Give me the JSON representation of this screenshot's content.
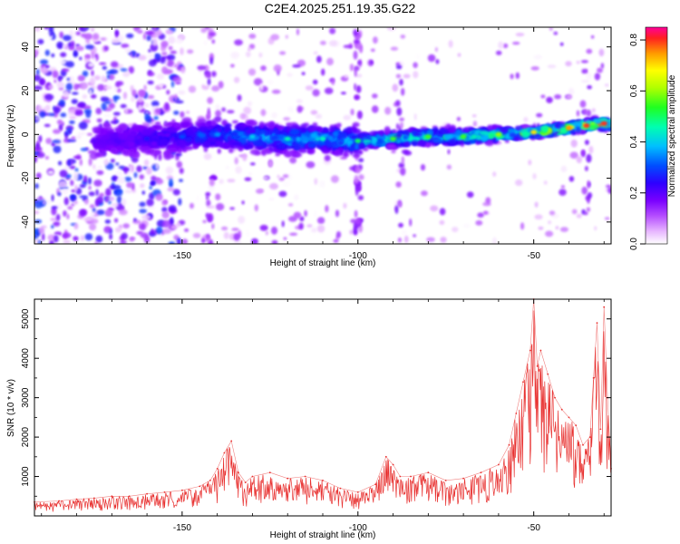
{
  "title": "C2E4.2025.251.19.35.G22",
  "colors": {
    "snr_line": "#e8302f",
    "axis": "#000000",
    "background": "#ffffff"
  },
  "chart_data": [
    {
      "type": "heatmap",
      "name": "spectrogram",
      "xlabel": "Height of straight line (km)",
      "ylabel": "Frequency (Hz)",
      "xlim": [
        -192,
        -28
      ],
      "ylim": [
        -50,
        49
      ],
      "x_ticks": [
        "-150",
        "-100",
        "-50"
      ],
      "x_tick_values": [
        -150,
        -100,
        -50
      ],
      "y_ticks": [
        "40",
        "20",
        "0",
        "-20",
        "-40"
      ],
      "y_tick_values": [
        40,
        20,
        0,
        -20,
        -40
      ],
      "colorbar": {
        "label": "Normalized spectral amplitude",
        "range": [
          0,
          0.85
        ],
        "ticks": [
          "0.0",
          "0.2",
          "0.4",
          "0.6",
          "0.8"
        ],
        "tick_values": [
          0.0,
          0.2,
          0.4,
          0.6,
          0.8
        ]
      },
      "description_points": {
        "ridge_height_km": [
          -175,
          -160,
          -150,
          -140,
          -130,
          -120,
          -110,
          -100,
          -90,
          -80,
          -70,
          -60,
          -50,
          -40,
          -35,
          -30
        ],
        "ridge_frequency_hz": [
          -3,
          -2,
          -1,
          0,
          -1,
          -2,
          -2,
          -3,
          -2,
          -1,
          -1,
          0,
          1,
          3,
          4,
          5
        ],
        "ridge_peak_amplitude": [
          0.2,
          0.25,
          0.3,
          0.35,
          0.4,
          0.45,
          0.45,
          0.5,
          0.55,
          0.55,
          0.55,
          0.6,
          0.7,
          0.75,
          0.8,
          0.8
        ]
      }
    },
    {
      "type": "line",
      "name": "snr",
      "xlabel": "Height of straight line (km)",
      "ylabel": "SNR (10 * v/v)",
      "xlim": [
        -192,
        -28
      ],
      "ylim": [
        0,
        5500
      ],
      "x_ticks": [
        "-150",
        "-100",
        "-50"
      ],
      "x_tick_values": [
        -150,
        -100,
        -50
      ],
      "y_ticks": [
        "1000",
        "2000",
        "3000",
        "4000",
        "5000"
      ],
      "y_tick_values": [
        1000,
        2000,
        3000,
        4000,
        5000
      ],
      "series": [
        {
          "name": "SNR",
          "x": [
            -192,
            -185,
            -180,
            -175,
            -170,
            -165,
            -160,
            -155,
            -150,
            -145,
            -142,
            -140,
            -138,
            -136,
            -134,
            -132,
            -130,
            -125,
            -120,
            -115,
            -110,
            -105,
            -100,
            -95,
            -92,
            -90,
            -88,
            -85,
            -80,
            -75,
            -70,
            -65,
            -60,
            -57,
            -55,
            -53,
            -51,
            -50,
            -49,
            -48,
            -46,
            -44,
            -42,
            -40,
            -38,
            -36,
            -34,
            -33,
            -32,
            -31,
            -30,
            -29,
            -28
          ],
          "values": [
            350,
            380,
            420,
            450,
            500,
            500,
            560,
            600,
            650,
            750,
            900,
            1200,
            1600,
            1900,
            1100,
            850,
            1000,
            1100,
            950,
            1000,
            900,
            700,
            600,
            800,
            1500,
            1300,
            1000,
            1000,
            1100,
            900,
            950,
            1100,
            1300,
            1800,
            2600,
            3400,
            4200,
            5500,
            3800,
            4200,
            3600,
            3000,
            2700,
            2500,
            2300,
            1800,
            2000,
            3500,
            4900,
            2200,
            5300,
            3000,
            1200
          ]
        }
      ]
    }
  ]
}
